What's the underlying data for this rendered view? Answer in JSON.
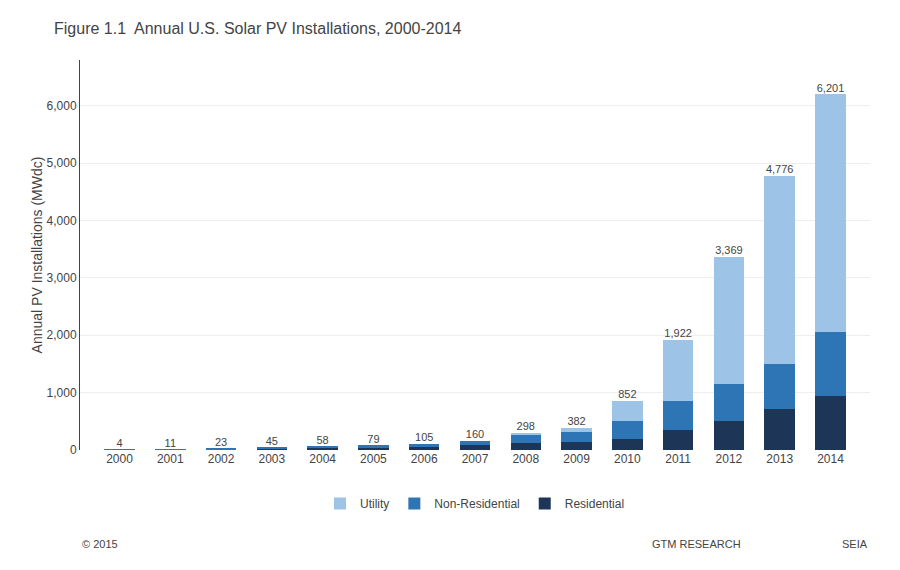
{
  "chart_data": {
    "type": "bar",
    "title": "Figure 1.1  Annual U.S. Solar PV Installations, 2000-2014",
    "y_label": "Annual PV Installations (MWdc)",
    "categories": [
      "2000",
      "2001",
      "2002",
      "2003",
      "2004",
      "2005",
      "2006",
      "2007",
      "2008",
      "2009",
      "2010",
      "2011",
      "2012",
      "2013",
      "2014"
    ],
    "series": [
      {
        "name": "Residential",
        "color": "#1d3557",
        "values": [
          3,
          8,
          17,
          30,
          38,
          48,
          60,
          85,
          130,
          140,
          200,
          350,
          500,
          720,
          950
        ]
      },
      {
        "name": "Non-Residential",
        "color": "#2e75b6",
        "values": [
          1,
          3,
          6,
          15,
          20,
          31,
          45,
          75,
          128,
          172,
          310,
          500,
          650,
          780,
          1100
        ]
      },
      {
        "name": "Utility",
        "color": "#9dc3e6",
        "values": [
          0,
          0,
          0,
          0,
          0,
          0,
          0,
          0,
          40,
          70,
          342,
          1072,
          2219,
          3276,
          4151
        ]
      }
    ],
    "totals": [
      4,
      11,
      23,
      45,
      58,
      79,
      105,
      160,
      298,
      382,
      852,
      1922,
      3369,
      4776,
      6201
    ],
    "total_labels": [
      "4",
      "11",
      "23",
      "45",
      "58",
      "79",
      "105",
      "160",
      "298",
      "382",
      "852",
      "1,922",
      "3,369",
      "4,776",
      "6,201"
    ],
    "stacked": true,
    "ylim": [
      0,
      6800
    ],
    "yticks": [
      0,
      {
        "value": 1000,
        "label": "1,000"
      },
      {
        "value": 2000,
        "label": "2,000"
      },
      {
        "value": 3000,
        "label": "3,000"
      },
      {
        "value": 4000,
        "label": "4,000"
      },
      {
        "value": 5000,
        "label": "5,000"
      },
      {
        "value": 6000,
        "label": "6,000"
      }
    ],
    "grid": true,
    "legend": "bottom",
    "annotations": [
      "© 2015",
      "GTM RESEARCH",
      "SEIA"
    ]
  }
}
